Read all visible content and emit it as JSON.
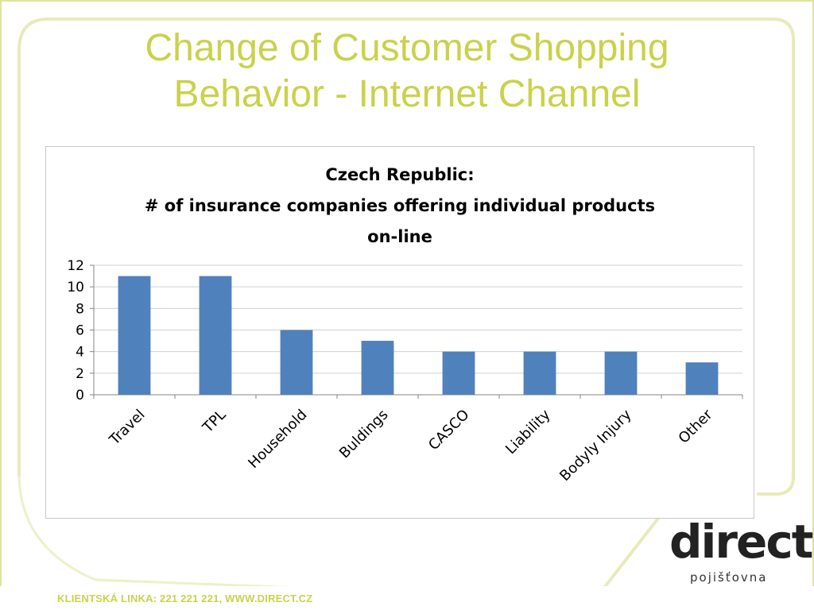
{
  "slide": {
    "title_line1": "Change of Customer Shopping",
    "title_line2": "Behavior - Internet Channel",
    "footer": "KLIENTSKÁ LINKA: 221 221 221, WWW.DIRECT.CZ",
    "logo_word": "direct",
    "logo_sub": "pojišťovna",
    "accent_color": "#c9d24a"
  },
  "chart_data": {
    "type": "bar",
    "title_lines": [
      "Czech Republic:",
      "# of insurance companies offering individual products",
      "on-line"
    ],
    "categories": [
      "Travel",
      "TPL",
      "Household",
      "Buldings",
      "CASCO",
      "Liability",
      "Bodyly Injury",
      "Other"
    ],
    "values": [
      11,
      11,
      6,
      5,
      4,
      4,
      4,
      3
    ],
    "ylim": [
      0,
      12
    ],
    "yticks": [
      0,
      2,
      4,
      6,
      8,
      10,
      12
    ],
    "grid": true,
    "legend": "none",
    "bar_color": "#4f81bd"
  }
}
